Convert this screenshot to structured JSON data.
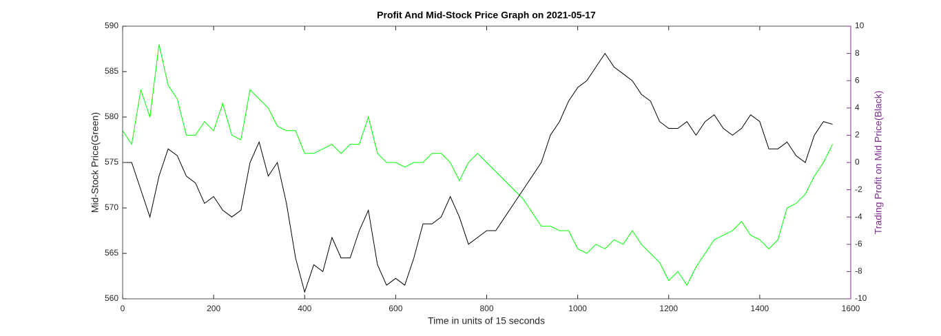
{
  "chart_data": {
    "type": "line",
    "title": "Profit And Mid-Stock Price Graph on 2021-05-17",
    "xlabel": "Time in units of 15 seconds",
    "ylabel": "Mid-Stock Price(Green)",
    "y2label": "Trading Profit on Mid Price(Black)",
    "x": [
      0,
      20,
      40,
      60,
      80,
      100,
      120,
      140,
      160,
      180,
      200,
      220,
      240,
      260,
      280,
      300,
      320,
      340,
      360,
      380,
      400,
      420,
      440,
      460,
      480,
      500,
      520,
      540,
      560,
      580,
      600,
      620,
      640,
      660,
      680,
      700,
      720,
      740,
      760,
      780,
      800,
      820,
      840,
      860,
      880,
      900,
      920,
      940,
      960,
      980,
      1000,
      1020,
      1040,
      1060,
      1080,
      1100,
      1120,
      1140,
      1160,
      1180,
      1200,
      1220,
      1240,
      1260,
      1280,
      1300,
      1320,
      1340,
      1360,
      1380,
      1400,
      1420,
      1440,
      1460,
      1480,
      1500,
      1520,
      1540,
      1560
    ],
    "series": [
      {
        "color": "#00ff00",
        "axis": "y",
        "values": [
          578.5,
          577,
          583,
          580,
          588,
          583.5,
          582,
          578,
          578,
          579.5,
          578.5,
          581.5,
          578,
          577.5,
          583,
          582,
          581,
          579,
          578.5,
          578.5,
          576,
          576,
          576.5,
          577,
          576,
          577,
          577,
          580,
          576,
          575,
          575,
          574.5,
          575,
          575,
          576,
          576,
          575,
          573,
          575,
          576,
          575,
          574,
          573,
          572,
          571,
          569.5,
          568,
          568,
          567.5,
          567.5,
          565.5,
          565,
          566,
          565.5,
          566.5,
          566,
          567.5,
          566,
          565,
          564,
          562,
          563,
          561.5,
          563.5,
          565,
          566.5,
          567,
          567.5,
          568.5,
          567,
          566.5,
          565.5,
          566.5,
          570,
          570.5,
          571.5,
          573.5,
          575,
          577
        ]
      },
      {
        "color": "#000000",
        "axis": "y2",
        "values": [
          0,
          0,
          -2,
          -4,
          -1,
          1,
          0.5,
          -1,
          -1.5,
          -3,
          -2.5,
          -3.5,
          -4,
          -3.5,
          0,
          1.5,
          -1,
          0,
          -3,
          -7,
          -9.5,
          -7.5,
          -8,
          -5.5,
          -7,
          -7,
          -5,
          -3.5,
          -7.5,
          -9,
          -8.5,
          -9,
          -7,
          -4.5,
          -4.5,
          -4,
          -2.5,
          -4,
          -6,
          -5.5,
          -5,
          -5,
          -4,
          -3,
          -2,
          -1,
          0,
          2,
          3,
          4.5,
          5.5,
          6,
          7,
          8,
          7,
          6.5,
          6,
          5,
          4.5,
          3,
          2.5,
          2.5,
          3,
          2,
          3,
          3.5,
          2.5,
          2,
          2.5,
          3.5,
          3,
          1,
          1,
          1.5,
          0.5,
          0,
          2,
          3,
          2.8
        ]
      }
    ],
    "xlim": [
      0,
      1600
    ],
    "xticks": [
      0,
      200,
      400,
      600,
      800,
      1000,
      1200,
      1400,
      1600
    ],
    "ylim": [
      560,
      590
    ],
    "yticks": [
      560,
      565,
      570,
      575,
      580,
      585,
      590
    ],
    "y2lim": [
      -10,
      10
    ],
    "y2ticks": [
      -10,
      -8,
      -6,
      -4,
      -2,
      0,
      2,
      4,
      6,
      8,
      10
    ],
    "y2color": "#7e2f8e"
  }
}
